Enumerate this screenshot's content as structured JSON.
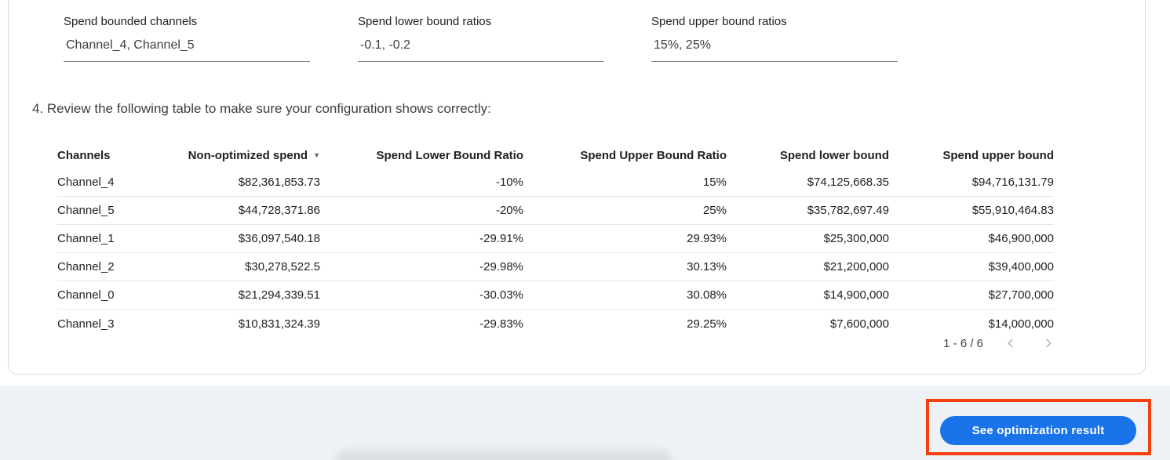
{
  "form": {
    "fields": [
      {
        "label": "Spend bounded channels",
        "value": "Channel_4, Channel_5"
      },
      {
        "label": "Spend lower bound ratios",
        "value": "-0.1, -0.2"
      },
      {
        "label": "Spend upper bound ratios",
        "value": "15%, 25%"
      }
    ]
  },
  "review": {
    "heading": "4. Review the following table to make sure your configuration shows correctly:"
  },
  "table": {
    "columns": [
      {
        "label": "Channels",
        "align": "left"
      },
      {
        "label": "Non-optimized spend",
        "align": "right",
        "sort": "desc"
      },
      {
        "label": "Spend Lower Bound Ratio",
        "align": "right"
      },
      {
        "label": "Spend Upper Bound Ratio",
        "align": "right"
      },
      {
        "label": "Spend lower bound",
        "align": "right"
      },
      {
        "label": "Spend upper bound",
        "align": "right"
      }
    ],
    "rows": [
      [
        "Channel_4",
        "$82,361,853.73",
        "-10%",
        "15%",
        "$74,125,668.35",
        "$94,716,131.79"
      ],
      [
        "Channel_5",
        "$44,728,371.86",
        "-20%",
        "25%",
        "$35,782,697.49",
        "$55,910,464.83"
      ],
      [
        "Channel_1",
        "$36,097,540.18",
        "-29.91%",
        "29.93%",
        "$25,300,000",
        "$46,900,000"
      ],
      [
        "Channel_2",
        "$30,278,522.5",
        "-29.98%",
        "30.13%",
        "$21,200,000",
        "$39,400,000"
      ],
      [
        "Channel_0",
        "$21,294,339.51",
        "-30.03%",
        "30.08%",
        "$14,900,000",
        "$27,700,000"
      ],
      [
        "Channel_3",
        "$10,831,324.39",
        "-29.83%",
        "29.25%",
        "$7,600,000",
        "$14,000,000"
      ]
    ]
  },
  "pagination": {
    "range_label": "1 - 6 / 6"
  },
  "actions": {
    "see_result_label": "See optimization result"
  },
  "icons": {
    "sort_arrow": "▼"
  },
  "colors": {
    "accent_blue": "#1a73e8",
    "annotation_red": "#f4400e",
    "footer_bg": "#eef1f5"
  }
}
